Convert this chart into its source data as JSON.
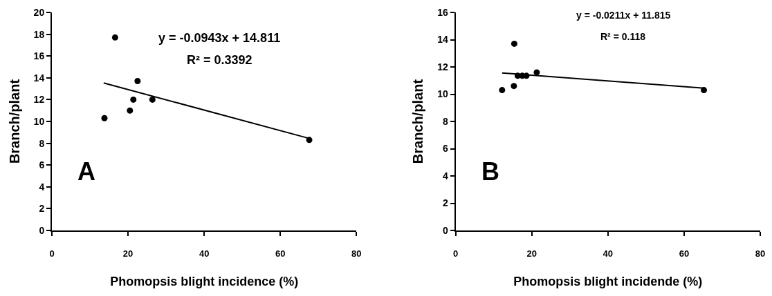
{
  "chart_data": [
    {
      "type": "scatter",
      "xlabel": "Phomopsis blight incidence (%)",
      "ylabel": "Branch/plant",
      "xlim": [
        0,
        80
      ],
      "xticks": [
        0,
        20,
        40,
        60,
        80
      ],
      "ylim": [
        0,
        20
      ],
      "yticks": [
        0,
        2,
        4,
        6,
        8,
        10,
        12,
        14,
        16,
        18,
        20
      ],
      "annotations": [
        "y = -0.0943x + 14.811",
        "R² = 0.3392",
        "A"
      ],
      "series": [
        {
          "color": "#000000",
          "marker": "circle",
          "x": [
            13.8,
            16.6,
            20.5,
            21.4,
            22.5,
            26.4,
            67.6
          ],
          "values": [
            10.3,
            17.7,
            11.0,
            12.0,
            13.7,
            12.0,
            8.3
          ]
        },
        {
          "type": "line",
          "color": "#000000",
          "marker": "none",
          "x": [
            13.6,
            67.6
          ],
          "values": [
            13.53,
            8.44
          ],
          "line_style": "solid"
        }
      ]
    },
    {
      "type": "scatter",
      "xlabel": "Phomopsis blight incidende (%)",
      "ylabel": "Branch/plant",
      "xlim": [
        0,
        80
      ],
      "xticks": [
        0,
        20,
        40,
        60,
        80
      ],
      "ylim": [
        0,
        16
      ],
      "yticks": [
        0,
        2,
        4,
        6,
        8,
        10,
        12,
        14,
        16
      ],
      "annotations": [
        "y = -0.0211x + 11.815",
        "R² = 0.118",
        "B"
      ],
      "series": [
        {
          "color": "#000000",
          "marker": "circle",
          "x": [
            12.2,
            15.4,
            15.3,
            16.3,
            17.5,
            18.6,
            21.3,
            65.2
          ],
          "values": [
            10.3,
            13.7,
            10.6,
            11.35,
            11.35,
            11.35,
            11.6,
            10.3
          ]
        },
        {
          "type": "line",
          "color": "#000000",
          "marker": "none",
          "x": [
            12.2,
            65.2
          ],
          "values": [
            11.56,
            10.44
          ],
          "line_style": "solid"
        }
      ]
    }
  ]
}
